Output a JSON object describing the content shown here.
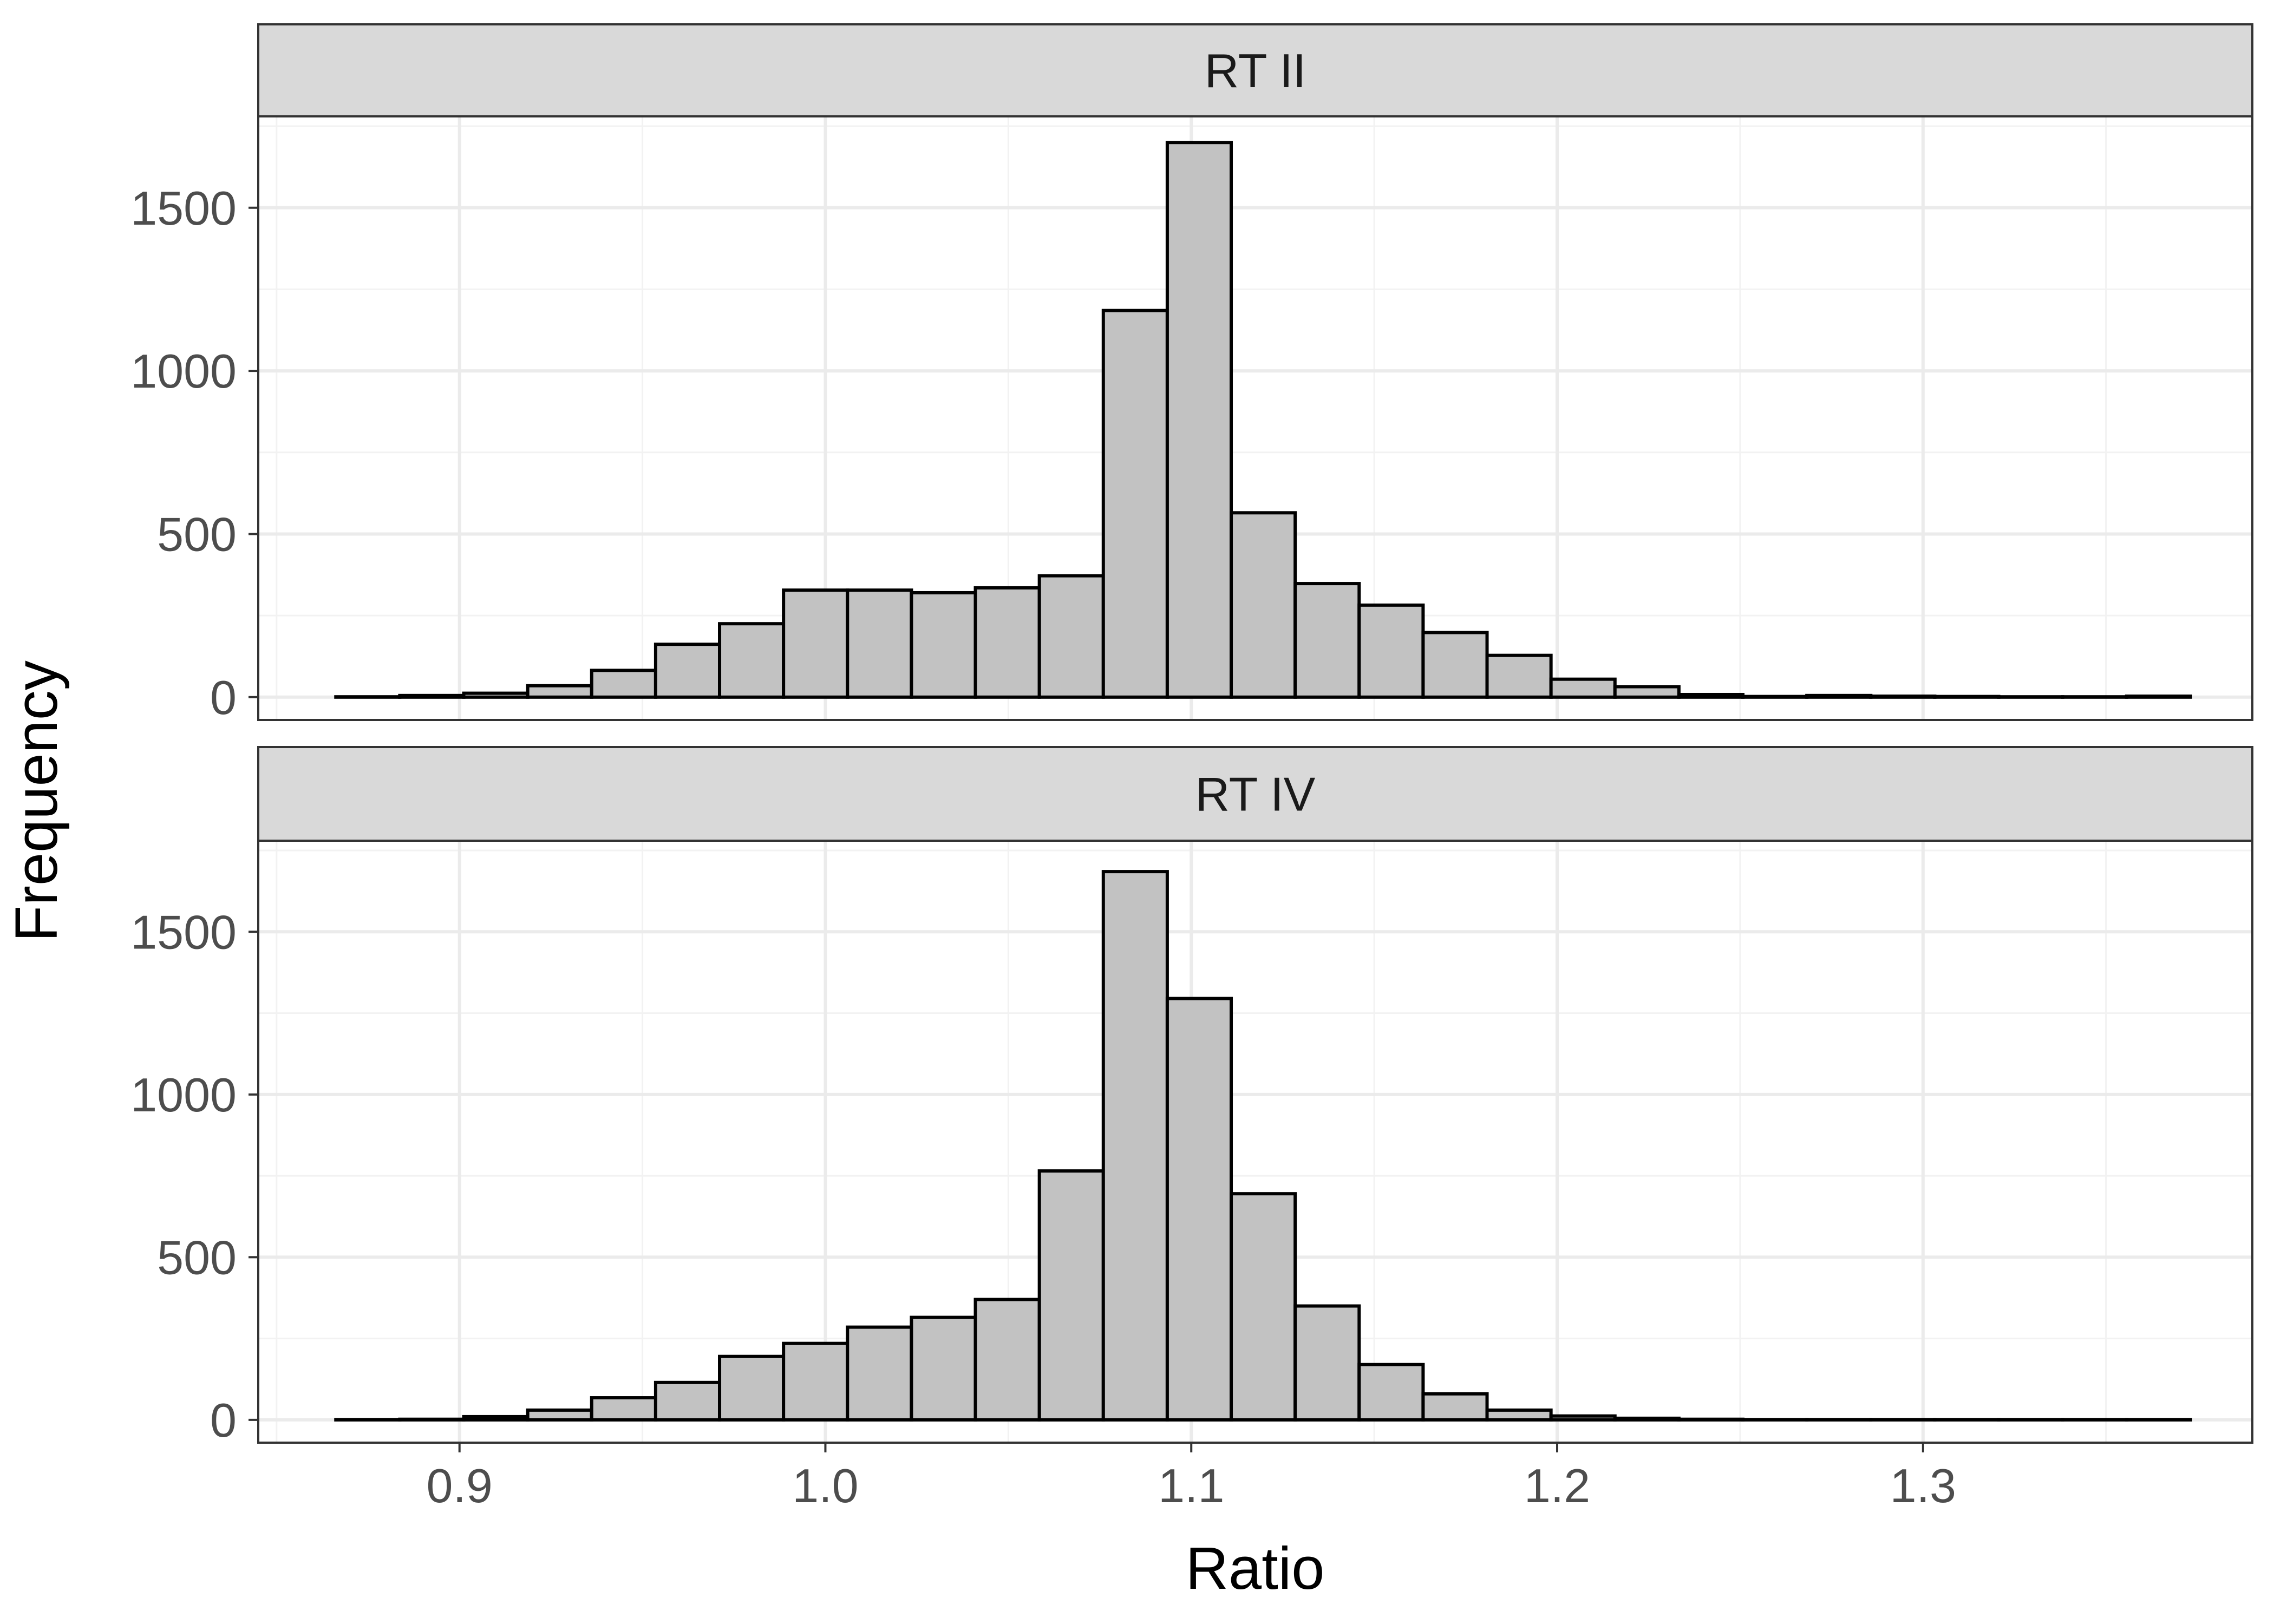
{
  "chart_data": {
    "type": "bar",
    "xlabel": "Ratio",
    "ylabel": "Frequency",
    "x_ticks": [
      0.9,
      1.0,
      1.1,
      1.2,
      1.3
    ],
    "x_tick_labels": [
      "0.9",
      "1.0",
      "1.1",
      "1.2",
      "1.3"
    ],
    "y_ticks": [
      0,
      500,
      1000,
      1500
    ],
    "y_tick_labels": [
      "0",
      "500",
      "1000",
      "1500"
    ],
    "xlim": [
      0.845,
      1.39
    ],
    "ylim": [
      -70,
      1780
    ],
    "grid": true,
    "bin_start": 0.8662,
    "bin_width": 0.01748,
    "bar_fill": "#c2c2c2",
    "bar_stroke": "#000000",
    "panels": [
      {
        "name": "RT II",
        "values": [
          1,
          5,
          12,
          35,
          82,
          162,
          225,
          328,
          328,
          320,
          335,
          372,
          1185,
          1700,
          565,
          348,
          282,
          198,
          128,
          55,
          32,
          8,
          2,
          5,
          3,
          2,
          1,
          1,
          3
        ]
      },
      {
        "name": "RT IV",
        "values": [
          1,
          2,
          10,
          30,
          68,
          115,
          195,
          235,
          285,
          315,
          370,
          765,
          1685,
          1295,
          695,
          350,
          170,
          80,
          30,
          12,
          5,
          2,
          1,
          1,
          1,
          1,
          1,
          1,
          1
        ]
      }
    ]
  }
}
